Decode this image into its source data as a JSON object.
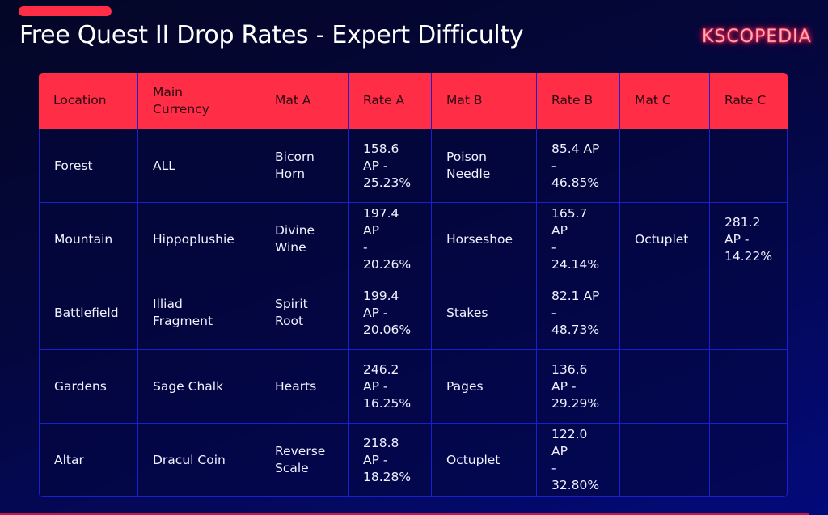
{
  "header": {
    "title": "Free Quest II Drop Rates - Expert Difficulty",
    "logo": "KSCOPEDIA"
  },
  "colors": {
    "accent": "#ff2d45",
    "background_dark": "#040626",
    "background_light": "#030a7a",
    "grid_line": "#1a1fd0"
  },
  "table": {
    "columns": [
      "Location",
      "Main\nCurrency",
      "Mat A",
      "Rate A",
      "Mat B",
      "Rate B",
      "Mat C",
      "Rate C"
    ],
    "rows": [
      [
        "Forest",
        "ALL",
        "Bicorn\nHorn",
        "158.6\nAP -\n25.23%",
        "Poison\nNeedle",
        "85.4 AP\n-\n46.85%",
        "",
        ""
      ],
      [
        "Mountain",
        "Hippoplushie",
        "Divine\nWine",
        "197.4 AP\n-\n20.26%",
        "Horseshoe",
        "165.7 AP\n-\n24.14%",
        "Octuplet",
        "281.2\nAP -\n14.22%"
      ],
      [
        "Battlefield",
        "Illiad\nFragment",
        "Spirit\nRoot",
        "199.4\nAP -\n20.06%",
        "Stakes",
        "82.1 AP\n-\n48.73%",
        "",
        ""
      ],
      [
        "Gardens",
        "Sage Chalk",
        "Hearts",
        "246.2\nAP -\n16.25%",
        "Pages",
        "136.6\nAP -\n29.29%",
        "",
        ""
      ],
      [
        "Altar",
        "Dracul Coin",
        "Reverse\nScale",
        "218.8\nAP -\n18.28%",
        "Octuplet",
        "122.0 AP\n-\n32.80%",
        "",
        ""
      ]
    ]
  }
}
